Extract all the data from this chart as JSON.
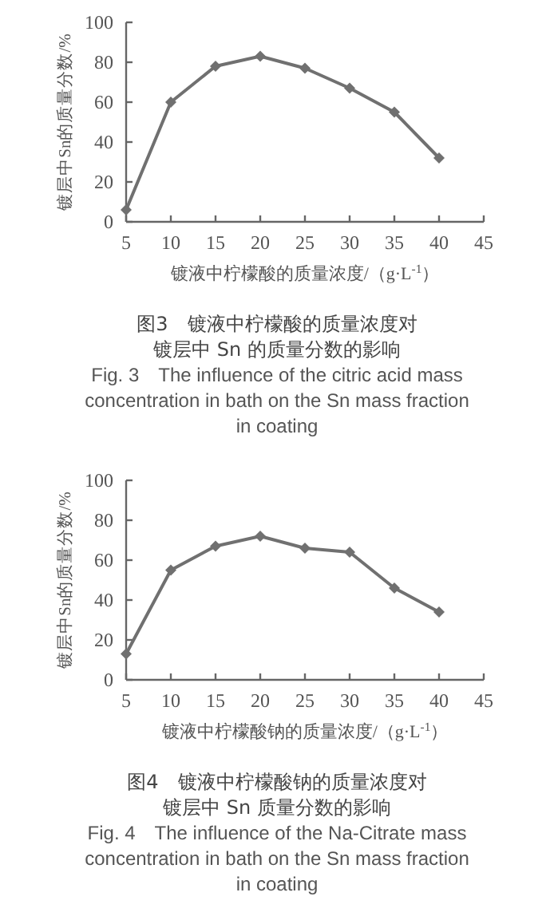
{
  "chart_data": [
    {
      "type": "line",
      "xlabel": "镀液中柠檬酸的质量浓度/（g·L$^{-1}$）",
      "ylabel": "镀层中Sn的质量分数/%",
      "x": [
        5,
        10,
        15,
        20,
        25,
        30,
        35,
        40
      ],
      "series": [
        {
          "color": "#707070",
          "values": [
            6,
            60,
            78,
            83,
            77,
            67,
            55,
            32
          ]
        }
      ],
      "xlim": [
        5,
        45
      ],
      "xticks": [
        5,
        10,
        15,
        20,
        25,
        30,
        35,
        40,
        45
      ],
      "ylim": [
        0,
        100
      ],
      "yticks": [
        0,
        20,
        40,
        60,
        80,
        100
      ],
      "marker": "diamond",
      "annotations": [
        "图3　镀液中柠檬酸的质量浓度对",
        "镀层中 Sn 的质量分数的影响",
        "Fig. 3　The influence of the citric acid mass concentration in bath on the Sn mass fraction in coating"
      ]
    },
    {
      "type": "line",
      "xlabel": "镀液中柠檬酸钠的质量浓度/（g·L$^{-1}$）",
      "ylabel": "镀层中Sn的质量分数/%",
      "x": [
        5,
        10,
        15,
        20,
        25,
        30,
        35,
        40
      ],
      "series": [
        {
          "color": "#707070",
          "values": [
            13,
            55,
            67,
            72,
            66,
            64,
            46,
            34
          ]
        }
      ],
      "xlim": [
        5,
        45
      ],
      "xticks": [
        5,
        10,
        15,
        20,
        25,
        30,
        35,
        40,
        45
      ],
      "ylim": [
        0,
        100
      ],
      "yticks": [
        0,
        20,
        40,
        60,
        80,
        100
      ],
      "marker": "diamond",
      "annotations": [
        "图4　镀液中柠檬酸钠的质量浓度对",
        "镀层中 Sn 质量分数的影响",
        "Fig. 4　The influence of the Na-Citrate mass concentration in bath on the Sn mass fraction in coating"
      ]
    }
  ]
}
